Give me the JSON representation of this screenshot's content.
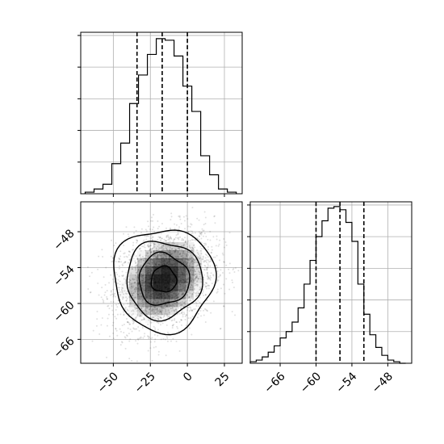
{
  "chart_data": [
    {
      "type": "histogram",
      "panel": "top-left",
      "bins": [
        -69,
        -63,
        -57,
        -51,
        -45,
        -39,
        -33,
        -27,
        -21,
        -15,
        -9,
        -3,
        3,
        9,
        15,
        21,
        27,
        33
      ],
      "counts": [
        0.01,
        0.03,
        0.06,
        0.19,
        0.32,
        0.57,
        0.75,
        0.88,
        0.98,
        0.97,
        0.87,
        0.68,
        0.52,
        0.24,
        0.12,
        0.03,
        0.01
      ],
      "quantiles": [
        -34,
        -17,
        0
      ],
      "xlim": [
        -72,
        37
      ],
      "x_ticks": [
        -50,
        -25,
        0,
        25
      ],
      "grid": true
    },
    {
      "type": "histogram",
      "panel": "bottom-right",
      "bins": [
        -71,
        -70,
        -69,
        -68,
        -67,
        -66,
        -65,
        -64,
        -63,
        -62,
        -61,
        -60,
        -59,
        -58,
        -57,
        -56,
        -55,
        -54,
        -53,
        -52,
        -51,
        -50,
        -49,
        -48,
        -47,
        -46,
        -45
      ],
      "counts": [
        0.01,
        0.02,
        0.04,
        0.07,
        0.11,
        0.16,
        0.2,
        0.26,
        0.35,
        0.5,
        0.65,
        0.8,
        0.9,
        0.98,
        0.99,
        0.97,
        0.89,
        0.77,
        0.5,
        0.31,
        0.18,
        0.1,
        0.05,
        0.02,
        0.01,
        0.0
      ],
      "quantiles": [
        -60,
        -56,
        -52
      ],
      "xlim": [
        -71,
        -44
      ],
      "x_ticks": [
        -66,
        -60,
        -54,
        -48
      ],
      "x_tick_labels": [
        "−66",
        "−60",
        "−54",
        "−48"
      ],
      "grid": true
    },
    {
      "type": "scatter-density",
      "panel": "bottom-left",
      "x_center": -16,
      "y_center": -56,
      "x_sd": 17,
      "y_sd": 4.3,
      "correlation": 0.25,
      "xlim": [
        -72,
        37
      ],
      "ylim": [
        -70,
        -43
      ],
      "x_ticks": [
        -50,
        -25,
        0,
        25
      ],
      "x_tick_labels": [
        "−50",
        "−25",
        "0",
        "25"
      ],
      "y_ticks": [
        -48,
        -54,
        -60,
        -66
      ],
      "y_tick_labels": [
        "−48",
        "−54",
        "−60",
        "−66"
      ],
      "contour_levels": [
        0.5,
        1.0,
        1.5,
        2.0
      ],
      "grid": true
    }
  ]
}
